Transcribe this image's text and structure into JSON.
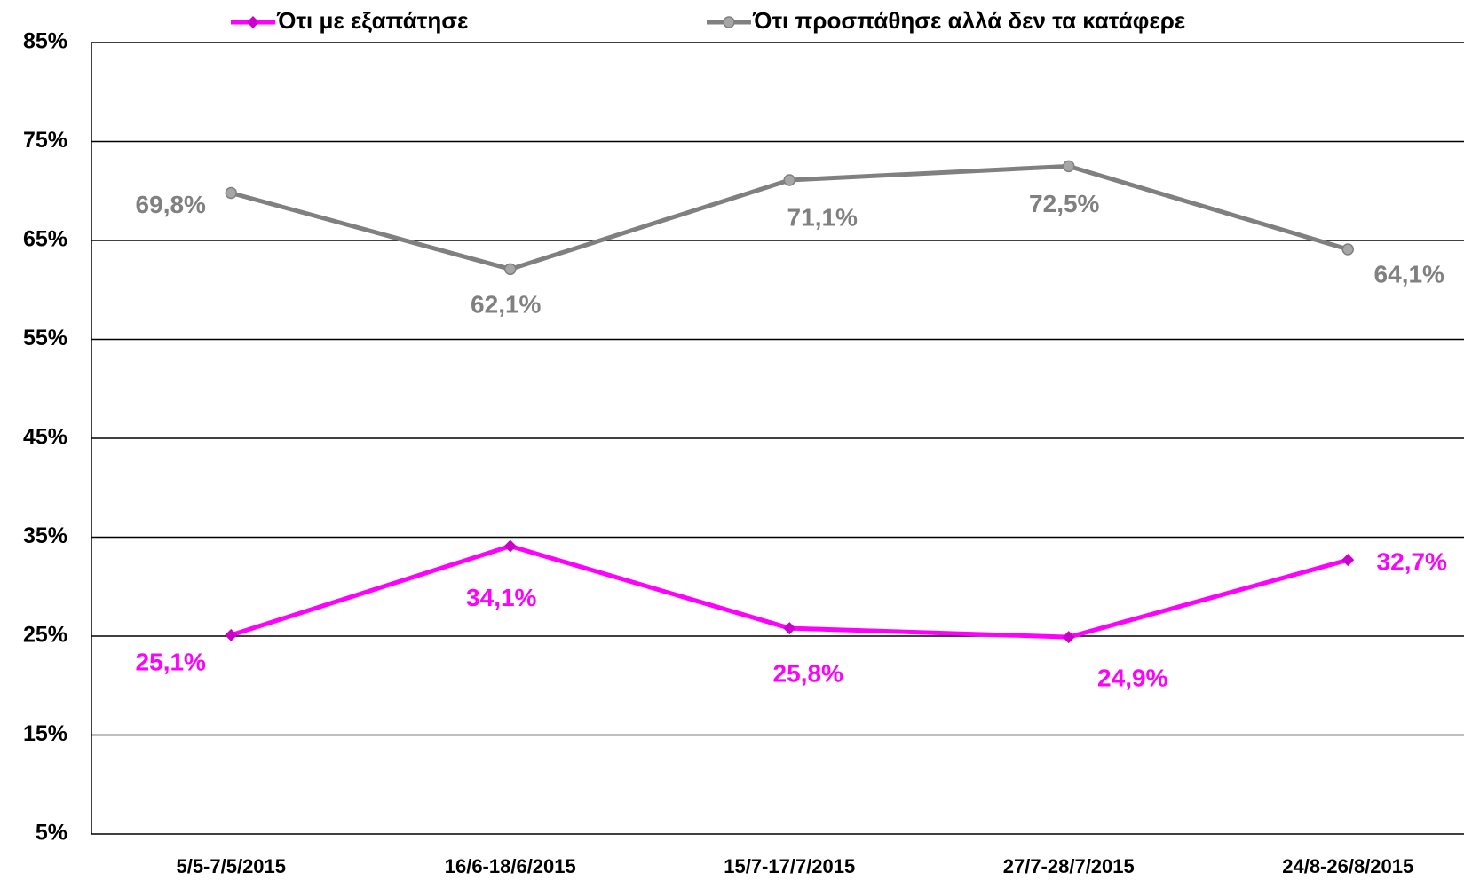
{
  "chart_data": {
    "type": "line",
    "categories": [
      "5/5-7/5/2015",
      "16/6-18/6/2015",
      "15/7-17/7/2015",
      "27/7-28/7/2015",
      "24/8-26/8/2015"
    ],
    "series": [
      {
        "name": "Ότι με εξαπάτησε",
        "color": "#ff00ff",
        "marker_color": "#cc00cc",
        "marker": "diamond",
        "values": [
          25.1,
          34.1,
          25.8,
          24.9,
          32.7
        ],
        "value_labels": [
          "25,1%",
          "34,1%",
          "25,8%",
          "24,9%",
          "32,7%"
        ]
      },
      {
        "name": "Ότι προσπάθησε αλλά δεν τα κατάφερε",
        "color": "#808080",
        "marker_color": "#a6a6a6",
        "marker": "circle",
        "values": [
          69.8,
          62.1,
          71.1,
          72.5,
          64.1
        ],
        "value_labels": [
          "69,8%",
          "62,1%",
          "71,1%",
          "72,5%",
          "64,1%"
        ]
      }
    ],
    "ylim": [
      5,
      85
    ],
    "yticks": [
      {
        "value": 5,
        "label": "5%"
      },
      {
        "value": 15,
        "label": "15%"
      },
      {
        "value": 25,
        "label": "25%"
      },
      {
        "value": 35,
        "label": "35%"
      },
      {
        "value": 45,
        "label": "45%"
      },
      {
        "value": 55,
        "label": "55%"
      },
      {
        "value": 65,
        "label": "65%"
      },
      {
        "value": 75,
        "label": "75%"
      },
      {
        "value": 85,
        "label": "85%"
      }
    ],
    "grid": true,
    "legend": "top"
  }
}
